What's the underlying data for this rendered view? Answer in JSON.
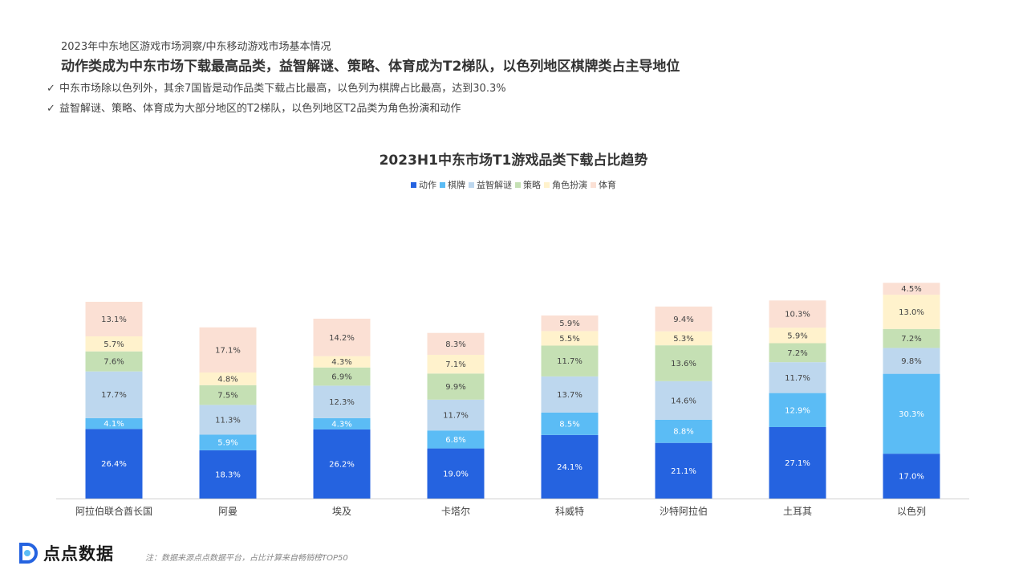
{
  "header": {
    "breadcrumb": "2023年中东地区游戏市场洞察/中东移动游戏市场基本情况",
    "headline": "动作类成为中东市场下载最高品类，益智解谜、策略、体育成为T2梯队，以色列地区棋牌类占主导地位"
  },
  "bullets": [
    {
      "icon": "check-icon",
      "text": "中东市场除以色列外，其余7国皆是动作品类下载占比最高，以色列为棋牌占比最高，达到30.3%"
    },
    {
      "icon": "check-icon",
      "text": "益智解谜、策略、体育成为大部分地区的T2梯队，以色列地区T2品类为角色扮演和动作"
    }
  ],
  "chart_data": {
    "type": "bar",
    "stacked": true,
    "title": "2023H1中东市场T1游戏品类下载占比趋势",
    "legend_position": "top-center",
    "grid": false,
    "categories": [
      "阿拉伯联合酋长国",
      "阿曼",
      "埃及",
      "卡塔尔",
      "科威特",
      "沙特阿拉伯",
      "土耳其",
      "以色列"
    ],
    "series": [
      {
        "name": "动作",
        "color": "#2563e0",
        "values": [
          26.4,
          18.3,
          26.2,
          19.0,
          24.1,
          21.1,
          27.1,
          17.0
        ]
      },
      {
        "name": "棋牌",
        "color": "#5bbcf5",
        "values": [
          4.1,
          5.9,
          4.3,
          6.8,
          8.5,
          8.8,
          12.9,
          30.3
        ]
      },
      {
        "name": "益智解谜",
        "color": "#bdd7ee",
        "values": [
          17.7,
          11.3,
          12.3,
          11.7,
          13.7,
          14.6,
          11.7,
          9.8
        ]
      },
      {
        "name": "策略",
        "color": "#c5e0b4",
        "values": [
          7.6,
          7.5,
          6.9,
          9.9,
          11.7,
          13.6,
          7.2,
          7.2
        ]
      },
      {
        "name": "角色扮演",
        "color": "#fff2cc",
        "values": [
          5.7,
          4.8,
          4.3,
          7.1,
          5.5,
          5.3,
          5.9,
          13.0
        ]
      },
      {
        "name": "体育",
        "color": "#fbe0d4",
        "values": [
          13.1,
          17.1,
          14.2,
          8.3,
          5.9,
          9.4,
          10.3,
          4.5
        ]
      }
    ],
    "value_suffix": "%"
  },
  "footer": {
    "logo_text": "点点数据",
    "note": "注：数据来源点点数据平台，占比计算来自畅销榜TOP50"
  }
}
